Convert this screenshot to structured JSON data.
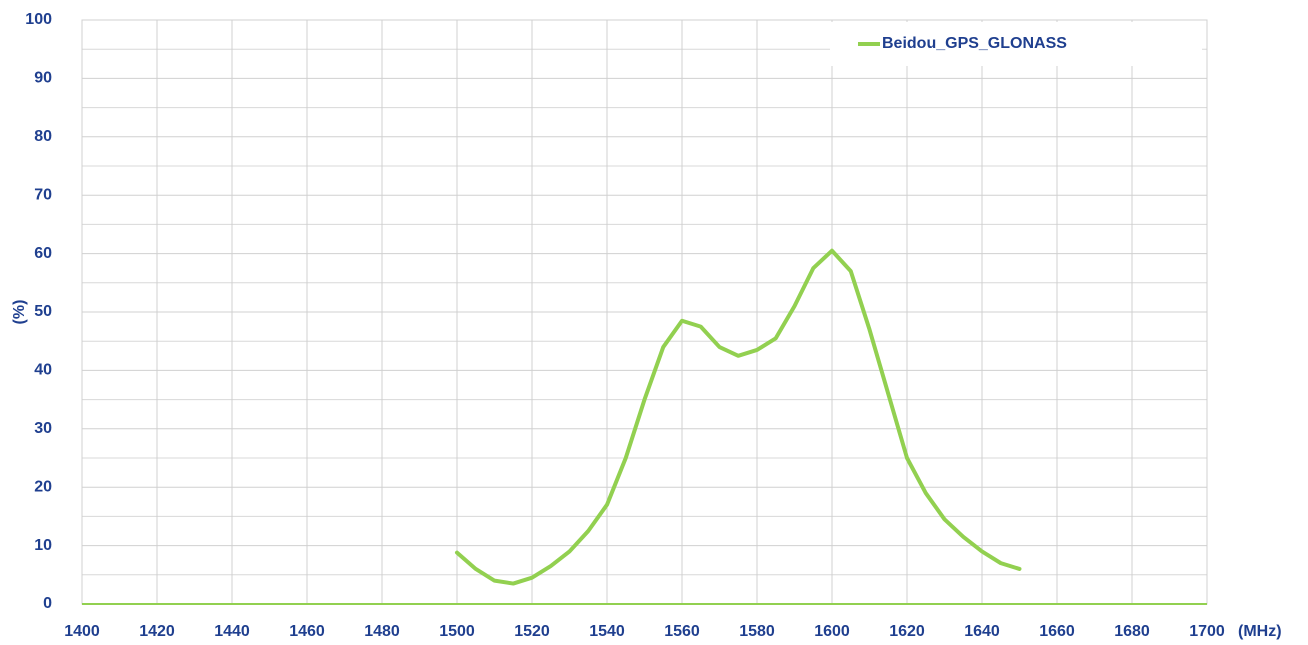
{
  "chart_data": {
    "type": "line",
    "xlabel": "(MHz)",
    "ylabel": "(%)",
    "xlim": [
      1400,
      1700
    ],
    "xticks": [
      1400,
      1420,
      1440,
      1460,
      1480,
      1500,
      1520,
      1540,
      1560,
      1580,
      1600,
      1620,
      1640,
      1660,
      1680,
      1700
    ],
    "ylim": [
      0,
      100
    ],
    "yticks": [
      0,
      10,
      20,
      30,
      40,
      50,
      60,
      70,
      80,
      90,
      100
    ],
    "grid": true,
    "legend": "upper right",
    "series": [
      {
        "name": "Beidou_GPS_GLONASS",
        "color": "#92d050",
        "x": [
          1500,
          1505,
          1510,
          1515,
          1520,
          1525,
          1530,
          1535,
          1540,
          1545,
          1550,
          1555,
          1560,
          1565,
          1570,
          1575,
          1580,
          1585,
          1590,
          1595,
          1600,
          1605,
          1610,
          1615,
          1620,
          1625,
          1630,
          1635,
          1640,
          1645,
          1650
        ],
        "values": [
          8.8,
          6,
          4,
          3.5,
          4.5,
          6.5,
          9,
          12.5,
          17,
          25,
          35,
          44,
          48.5,
          47.5,
          44,
          42.5,
          43.5,
          45.5,
          51,
          57.5,
          60.5,
          57,
          47,
          36,
          25,
          19,
          14.5,
          11.5,
          9,
          7,
          6
        ]
      }
    ]
  }
}
